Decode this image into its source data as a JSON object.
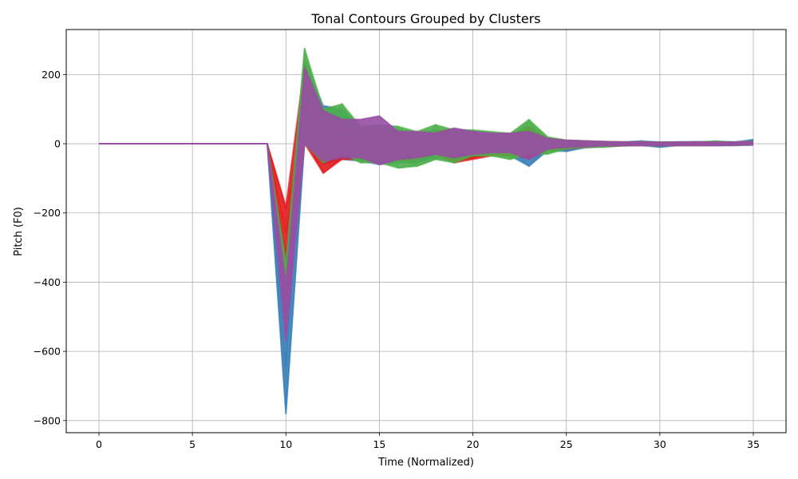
{
  "chart_data": {
    "type": "line",
    "title": "Tonal Contours Grouped by Clusters",
    "xlabel": "Time (Normalized)",
    "ylabel": "Pitch (F0)",
    "xlim": [
      -1.75,
      36.75
    ],
    "ylim": [
      -835,
      330
    ],
    "x_ticks": [
      0,
      5,
      10,
      15,
      20,
      25,
      30,
      35
    ],
    "x_tick_labels": [
      "0",
      "5",
      "10",
      "15",
      "20",
      "25",
      "30",
      "35"
    ],
    "y_ticks": [
      200,
      0,
      -200,
      -400,
      -600,
      -800
    ],
    "y_tick_labels": [
      "200",
      "0",
      "−200",
      "−400",
      "−600",
      "−800"
    ],
    "grid": true,
    "legend": false,
    "x": [
      0,
      1,
      2,
      3,
      4,
      5,
      6,
      7,
      8,
      9,
      10,
      11,
      12,
      13,
      14,
      15,
      16,
      17,
      18,
      19,
      20,
      21,
      22,
      23,
      24,
      25,
      26,
      27,
      28,
      29,
      30,
      31,
      32,
      33,
      34,
      35
    ],
    "clusters": [
      {
        "color": "#377eb8",
        "upper": [
          0,
          0,
          0,
          0,
          0,
          0,
          0,
          0,
          0,
          0,
          -330,
          240,
          110,
          100,
          50,
          50,
          40,
          30,
          40,
          35,
          30,
          28,
          25,
          20,
          15,
          10,
          8,
          6,
          5,
          8,
          5,
          5,
          6,
          5,
          5,
          12
        ],
        "lower": [
          0,
          0,
          0,
          0,
          0,
          0,
          0,
          0,
          0,
          0,
          -780,
          5,
          -60,
          -45,
          -50,
          -60,
          -55,
          -55,
          -40,
          -45,
          -40,
          -30,
          -35,
          -65,
          -20,
          -22,
          -12,
          -8,
          -6,
          -5,
          -10,
          -5,
          -5,
          -5,
          -5,
          -4
        ],
        "representative": [
          [
            0,
            0,
            0,
            0,
            0,
            0,
            0,
            0,
            0,
            0,
            -780,
            10,
            -40,
            -30,
            -20,
            -35,
            -25,
            -20,
            -15,
            -20,
            -15,
            -10,
            -10,
            -65,
            -10,
            -22,
            -8,
            -5,
            -3,
            -2,
            -10,
            -3,
            -2,
            -3,
            -2,
            2
          ],
          [
            0,
            0,
            0,
            0,
            0,
            0,
            0,
            0,
            0,
            0,
            -650,
            180,
            90,
            80,
            30,
            20,
            25,
            15,
            20,
            15,
            10,
            10,
            8,
            5,
            5,
            3,
            2,
            2,
            1,
            8,
            1,
            2,
            2,
            1,
            1,
            12
          ],
          [
            0,
            0,
            0,
            0,
            0,
            0,
            0,
            0,
            0,
            0,
            -500,
            120,
            20,
            40,
            -10,
            10,
            -30,
            0,
            10,
            -5,
            0,
            5,
            -5,
            0,
            -5,
            0,
            -2,
            0,
            -1,
            0,
            -2,
            0,
            1,
            0,
            0,
            0
          ]
        ]
      },
      {
        "color": "#e41a1c",
        "upper": [
          0,
          0,
          0,
          0,
          0,
          0,
          0,
          0,
          0,
          0,
          -180,
          230,
          70,
          60,
          30,
          40,
          30,
          25,
          35,
          40,
          30,
          30,
          25,
          50,
          15,
          10,
          8,
          6,
          5,
          5,
          4,
          5,
          5,
          5,
          4,
          6
        ],
        "lower": [
          0,
          0,
          0,
          0,
          0,
          0,
          0,
          0,
          0,
          0,
          -400,
          0,
          -85,
          -45,
          -45,
          -50,
          -50,
          -45,
          -30,
          -55,
          -45,
          -35,
          -35,
          -40,
          -20,
          -15,
          -10,
          -8,
          -6,
          -5,
          -5,
          -5,
          -5,
          -5,
          -4,
          -3
        ],
        "representative": [
          [
            0,
            0,
            0,
            0,
            0,
            0,
            0,
            0,
            0,
            0,
            -190,
            20,
            -85,
            -40,
            -40,
            -45,
            -45,
            -40,
            -25,
            -50,
            -40,
            -30,
            -30,
            -35,
            -15,
            -10,
            -5,
            -5,
            -3,
            -3,
            -2,
            -2,
            -2,
            -2,
            -2,
            0
          ],
          [
            0,
            0,
            0,
            0,
            0,
            0,
            0,
            0,
            0,
            0,
            -320,
            210,
            60,
            50,
            20,
            30,
            25,
            20,
            30,
            35,
            25,
            25,
            20,
            45,
            10,
            8,
            5,
            4,
            3,
            3,
            2,
            3,
            3,
            3,
            2,
            4
          ],
          [
            0,
            0,
            0,
            0,
            0,
            0,
            0,
            0,
            0,
            0,
            -260,
            100,
            -20,
            10,
            -10,
            0,
            -10,
            -5,
            5,
            -10,
            -5,
            0,
            -5,
            10,
            0,
            0,
            0,
            0,
            0,
            0,
            0,
            0,
            0,
            0,
            0,
            0
          ]
        ]
      },
      {
        "color": "#4daf4a",
        "upper": [
          0,
          0,
          0,
          0,
          0,
          0,
          0,
          0,
          0,
          0,
          -340,
          275,
          100,
          115,
          50,
          55,
          50,
          35,
          55,
          40,
          40,
          35,
          30,
          70,
          20,
          10,
          8,
          6,
          5,
          5,
          4,
          5,
          5,
          8,
          5,
          8
        ],
        "lower": [
          0,
          0,
          0,
          0,
          0,
          0,
          0,
          0,
          0,
          0,
          -410,
          0,
          -55,
          -30,
          -55,
          -55,
          -70,
          -65,
          -45,
          -55,
          -35,
          -35,
          -45,
          -30,
          -30,
          -15,
          -10,
          -10,
          -6,
          -5,
          -5,
          -5,
          -5,
          -5,
          -5,
          -3
        ],
        "representative": [
          [
            0,
            0,
            0,
            0,
            0,
            0,
            0,
            0,
            0,
            0,
            -410,
            275,
            40,
            115,
            20,
            55,
            -70,
            -60,
            55,
            -50,
            40,
            -30,
            -45,
            70,
            -30,
            5,
            -5,
            -10,
            0,
            0,
            0,
            0,
            0,
            8,
            0,
            5
          ],
          [
            0,
            0,
            0,
            0,
            0,
            0,
            0,
            0,
            0,
            0,
            -360,
            200,
            -50,
            -30,
            -50,
            40,
            50,
            -65,
            -45,
            20,
            -35,
            30,
            20,
            60,
            15,
            8,
            5,
            4,
            3,
            2,
            2,
            2,
            2,
            2,
            2,
            3
          ],
          [
            0,
            0,
            0,
            0,
            0,
            0,
            0,
            0,
            0,
            0,
            -380,
            240,
            100,
            40,
            -55,
            10,
            -20,
            20,
            30,
            -20,
            10,
            0,
            -20,
            20,
            0,
            0,
            0,
            0,
            0,
            0,
            0,
            0,
            0,
            0,
            0,
            0
          ]
        ]
      },
      {
        "color": "#984ea3",
        "upper": [
          0,
          0,
          0,
          0,
          0,
          0,
          0,
          0,
          0,
          0,
          -400,
          220,
          95,
          70,
          70,
          80,
          35,
          35,
          30,
          45,
          35,
          30,
          30,
          35,
          15,
          10,
          8,
          6,
          5,
          5,
          4,
          5,
          5,
          5,
          5,
          6
        ],
        "lower": [
          0,
          0,
          0,
          0,
          0,
          0,
          0,
          0,
          0,
          0,
          -570,
          0,
          -50,
          -40,
          -40,
          -60,
          -45,
          -40,
          -30,
          -40,
          -30,
          -25,
          -25,
          -45,
          -15,
          -10,
          -8,
          -6,
          -5,
          -5,
          -5,
          -5,
          -5,
          -5,
          -4,
          -3
        ],
        "representative": [
          [
            0,
            0,
            0,
            0,
            0,
            0,
            0,
            0,
            0,
            0,
            -570,
            220,
            95,
            70,
            70,
            80,
            35,
            35,
            30,
            45,
            35,
            30,
            30,
            35,
            15,
            10,
            8,
            6,
            5,
            5,
            4,
            5,
            5,
            5,
            5,
            6
          ],
          [
            0,
            0,
            0,
            0,
            0,
            0,
            0,
            0,
            0,
            0,
            -420,
            0,
            -50,
            -40,
            -40,
            -60,
            -45,
            -40,
            -30,
            -40,
            -30,
            -25,
            -25,
            -45,
            -15,
            -10,
            -8,
            -6,
            -5,
            -5,
            -5,
            -5,
            -5,
            -5,
            -4,
            -3
          ],
          [
            0,
            0,
            0,
            0,
            0,
            0,
            0,
            0,
            0,
            0,
            -480,
            110,
            20,
            10,
            15,
            10,
            -5,
            0,
            0,
            5,
            2,
            2,
            2,
            -5,
            0,
            0,
            0,
            0,
            0,
            0,
            0,
            0,
            0,
            0,
            0,
            0
          ]
        ]
      }
    ]
  }
}
